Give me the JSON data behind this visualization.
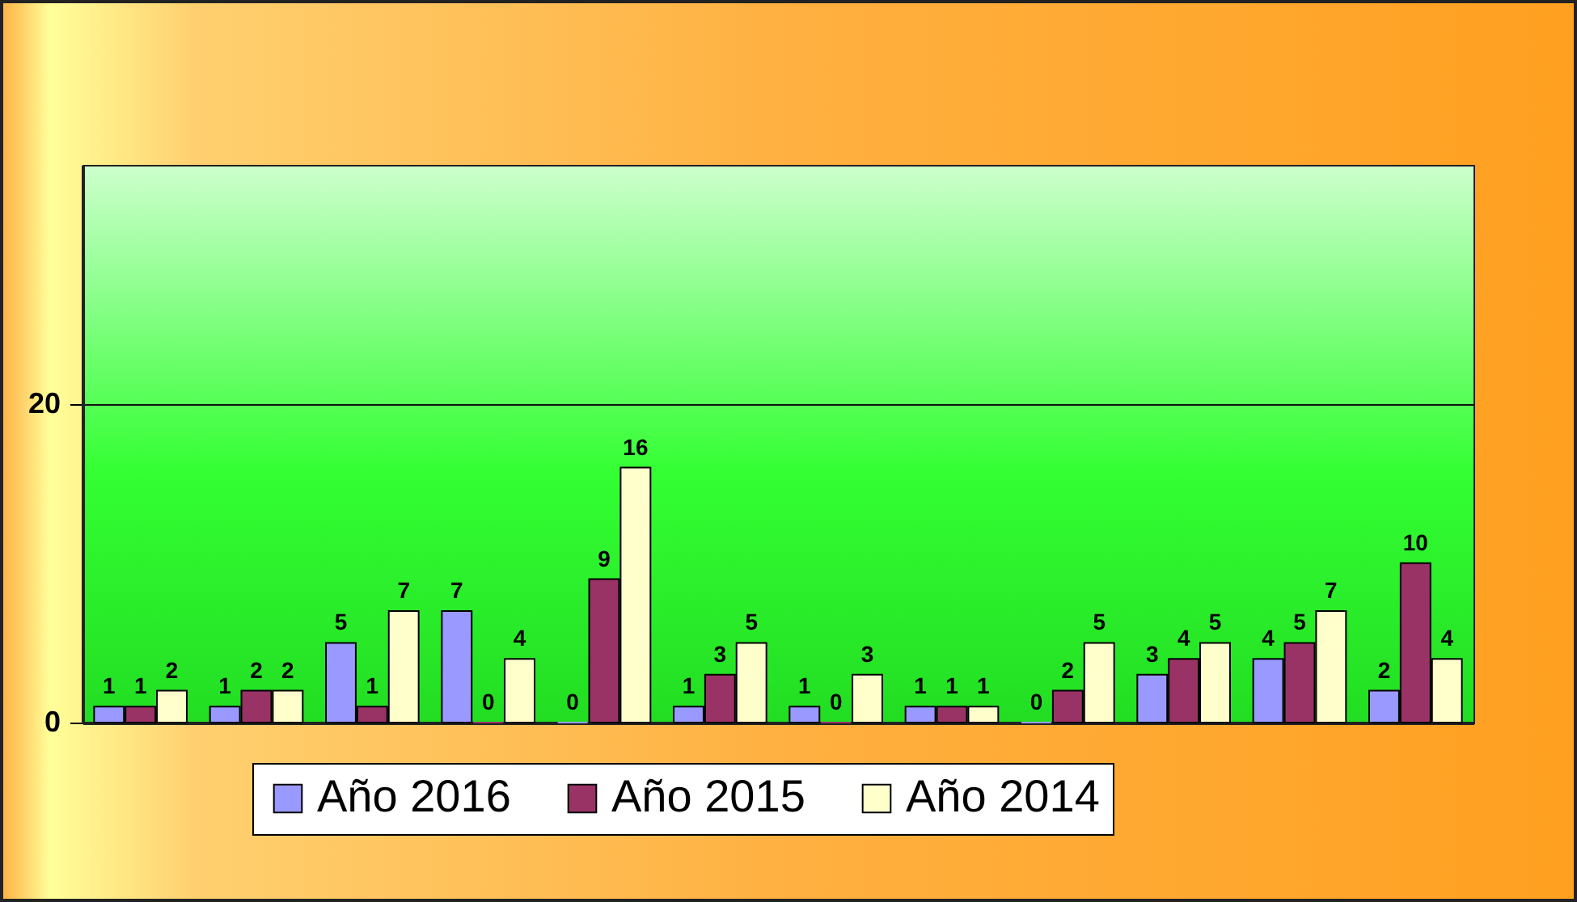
{
  "chart_data": {
    "type": "bar",
    "categories": [
      null,
      null,
      null,
      null,
      null,
      null,
      null,
      null,
      null,
      null,
      null,
      null
    ],
    "series": [
      {
        "name": "Año 2016",
        "color": "#9999ff",
        "values": [
          1,
          1,
          5,
          7,
          0,
          1,
          1,
          1,
          0,
          3,
          4,
          2
        ]
      },
      {
        "name": "Año 2015",
        "color": "#993366",
        "values": [
          1,
          2,
          1,
          0,
          9,
          3,
          0,
          1,
          2,
          4,
          5,
          10
        ]
      },
      {
        "name": "Año 2014",
        "color": "#ffffcc",
        "values": [
          2,
          2,
          7,
          4,
          16,
          5,
          3,
          1,
          5,
          5,
          7,
          4
        ]
      }
    ],
    "ylim": [
      0,
      35
    ],
    "yticks": [
      0,
      20
    ],
    "grid": "y",
    "legend": "bottom",
    "tick_labels": "y",
    "data_labels": true
  }
}
